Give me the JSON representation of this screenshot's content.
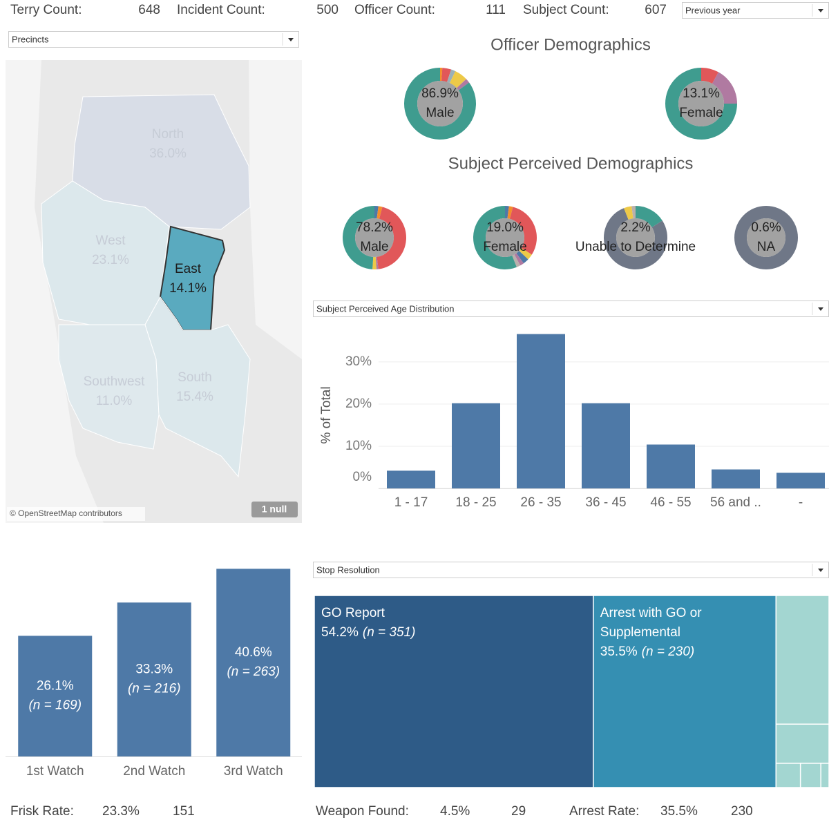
{
  "header": {
    "stats": [
      {
        "label": "Terry Count:",
        "value": "648"
      },
      {
        "label": "Incident Count:",
        "value": "500"
      },
      {
        "label": "Officer Count:",
        "value": "111"
      },
      {
        "label": "Subject Count:",
        "value": "607"
      }
    ],
    "period": "Previous year"
  },
  "footer": {
    "stats": [
      {
        "label": "Frisk Rate:",
        "rate": "23.3%",
        "count": "151"
      },
      {
        "label": "Weapon Found:",
        "rate": "4.5%",
        "count": "29"
      },
      {
        "label": "Arrest Rate:",
        "rate": "35.5%",
        "count": "230"
      }
    ]
  },
  "chart_data": [
    {
      "type": "map",
      "filter": "Precincts",
      "categories": [
        "North",
        "West",
        "East",
        "Southwest",
        "South"
      ],
      "values": [
        36.0,
        23.1,
        14.1,
        11.0,
        15.4
      ],
      "value_labels": [
        "36.0%",
        "23.1%",
        "14.1%",
        "11.0%",
        "15.4%"
      ],
      "colors": [
        "#d5dae6",
        "#d9e7ec",
        "#5aaabf",
        "#dde9ed",
        "#d9e8ec"
      ],
      "highlight": "East",
      "attribution": "© OpenStreetMap contributors",
      "null_badge": "1 null"
    },
    {
      "type": "donut",
      "title": "Officer Demographics",
      "items": [
        {
          "label": "Male",
          "value": 86.9,
          "value_label": "86.9%",
          "segments": [
            {
              "color": "#f28e2b",
              "value": 1
            },
            {
              "color": "#e15759",
              "value": 4
            },
            {
              "color": "#9ab0b8",
              "value": 2
            },
            {
              "color": "#edc948",
              "value": 6
            },
            {
              "color": "#b07aa1",
              "value": 2
            },
            {
              "color": "#3f9c8f",
              "value": 85
            }
          ]
        },
        {
          "label": "Female",
          "value": 13.1,
          "value_label": "13.1%",
          "segments": [
            {
              "color": "#e15759",
              "value": 8
            },
            {
              "color": "#b07aa1",
              "value": 17
            },
            {
              "color": "#3f9c8f",
              "value": 75
            }
          ]
        }
      ]
    },
    {
      "type": "donut",
      "title": "Subject Perceived Demographics",
      "items": [
        {
          "label": "Male",
          "value": 78.2,
          "value_label": "78.2%",
          "segments": [
            {
              "color": "#4e79a7",
              "value": 2
            },
            {
              "color": "#f28e2b",
              "value": 2
            },
            {
              "color": "#e15759",
              "value": 44
            },
            {
              "color": "#b07aa1",
              "value": 1
            },
            {
              "color": "#edc948",
              "value": 2
            },
            {
              "color": "#3f9c8f",
              "value": 49
            }
          ]
        },
        {
          "label": "Female",
          "value": 19.0,
          "value_label": "19.0%",
          "segments": [
            {
              "color": "#4e79a7",
              "value": 2
            },
            {
              "color": "#f28e2b",
              "value": 2
            },
            {
              "color": "#e15759",
              "value": 30
            },
            {
              "color": "#edc948",
              "value": 3
            },
            {
              "color": "#4e79a7",
              "value": 3
            },
            {
              "color": "#b07aa1",
              "value": 2
            },
            {
              "color": "#bab0ac",
              "value": 2
            },
            {
              "color": "#3f9c8f",
              "value": 56
            }
          ]
        },
        {
          "label": "Unable to Determine",
          "value": 2.2,
          "value_label": "2.2%",
          "segments": [
            {
              "color": "#3f9c8f",
              "value": 16
            },
            {
              "color": "#6f7787",
              "value": 78
            },
            {
              "color": "#edc948",
              "value": 4
            },
            {
              "color": "#bab0ac",
              "value": 2
            }
          ]
        },
        {
          "label": "NA",
          "value": 0.6,
          "value_label": "0.6%",
          "segments": [
            {
              "color": "#6f7787",
              "value": 100
            }
          ]
        }
      ]
    },
    {
      "type": "bar",
      "filter": "Subject Perceived Age Distribution",
      "y_label": "% of Total",
      "categories": [
        "1 - 17",
        "18 - 25",
        "26 - 35",
        "36 - 45",
        "46 - 55",
        "56 and ..",
        "-"
      ],
      "values": [
        4.2,
        20.2,
        36.6,
        20.2,
        10.4,
        4.5,
        3.7
      ],
      "color": "#4e79a7",
      "ylim": [
        0,
        38
      ],
      "yticks": [
        {
          "value": 0,
          "label": "0%"
        },
        {
          "value": 10,
          "label": "10%"
        },
        {
          "value": 20,
          "label": "20%"
        },
        {
          "value": 30,
          "label": "30%"
        }
      ],
      "grid": true
    },
    {
      "type": "bar",
      "categories": [
        "1st Watch",
        "2nd Watch",
        "3rd Watch"
      ],
      "values": [
        26.1,
        33.3,
        40.6
      ],
      "value_labels": [
        "26.1%",
        "33.3%",
        "40.6%"
      ],
      "n_labels": [
        "(n = 169)",
        "(n = 216)",
        "(n = 263)"
      ],
      "color": "#4e79a7",
      "ylim": [
        0,
        42
      ]
    },
    {
      "type": "treemap",
      "filter": "Stop Resolution",
      "categories": [
        "GO Report",
        "Arrest with GO or Supplemental",
        null,
        null,
        null,
        null,
        null
      ],
      "values": [
        54.2,
        35.5,
        6.9,
        2.1,
        0.6,
        0.5,
        0.2
      ],
      "value_labels": [
        "54.2%",
        "35.5%",
        null,
        null,
        null,
        null,
        null
      ],
      "n_labels": [
        "(n = 351)",
        "(n = 230)",
        null,
        null,
        null,
        null,
        null
      ],
      "colors": [
        "#2e5b87",
        "#358fb2",
        "#a3d6d1",
        "#a3d6d1",
        "#a3d6d1",
        "#a3d6d1",
        "#a3d6d1"
      ]
    }
  ]
}
